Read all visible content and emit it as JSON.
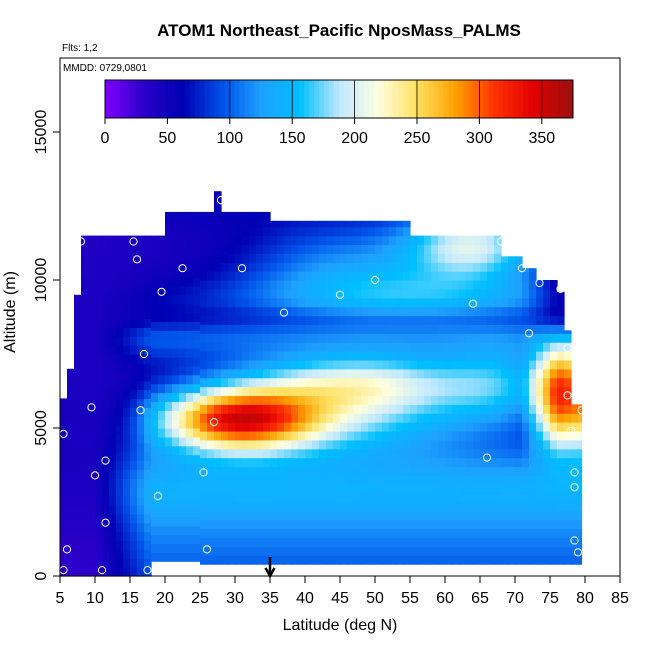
{
  "chart_data": {
    "type": "heatmap",
    "title": "ATOM1 Northeast_Pacific NposMass_PALMS",
    "annotations": [
      "Flts: 1,2",
      "MMDD: 0729,0801"
    ],
    "xlabel": "Latitude (deg N)",
    "ylabel": "Altitude (m)",
    "xlim": [
      5,
      85
    ],
    "ylim": [
      0,
      17500
    ],
    "xticks": [
      "5",
      "10",
      "15",
      "20",
      "25",
      "30",
      "35",
      "40",
      "45",
      "50",
      "55",
      "60",
      "65",
      "70",
      "75",
      "80",
      "85"
    ],
    "yticks": [
      "0",
      "5000",
      "10000",
      "15000"
    ],
    "colorbar": {
      "min": 0,
      "max": 375,
      "ticks": [
        "0",
        "50",
        "100",
        "150",
        "200",
        "250",
        "300",
        "350"
      ],
      "colors": [
        "#7f00ff",
        "#2a00c8",
        "#0000b4",
        "#0050e8",
        "#1ea0ff",
        "#00bfff",
        "#bfe8ff",
        "#ffffe0",
        "#ffe060",
        "#ffa000",
        "#ff3000",
        "#e00000",
        "#9a1010"
      ]
    },
    "marker": {
      "x": 35,
      "label": "↓"
    },
    "profile_points": [
      [
        5.5,
        200
      ],
      [
        6,
        900
      ],
      [
        5.5,
        4800
      ],
      [
        9.5,
        5700
      ],
      [
        10,
        3400
      ],
      [
        11,
        200
      ],
      [
        11.5,
        3900
      ],
      [
        11.5,
        1800
      ],
      [
        8,
        11300
      ],
      [
        15.5,
        11300
      ],
      [
        16,
        10700
      ],
      [
        16.5,
        5600
      ],
      [
        17,
        7500
      ],
      [
        17.5,
        200
      ],
      [
        19,
        2700
      ],
      [
        19.5,
        9600
      ],
      [
        22.5,
        10400
      ],
      [
        25.5,
        3500
      ],
      [
        26,
        900
      ],
      [
        27,
        5200
      ],
      [
        28,
        12700
      ],
      [
        31,
        10400
      ],
      [
        37,
        8900
      ],
      [
        45,
        9500
      ],
      [
        50,
        10000
      ],
      [
        64,
        9200
      ],
      [
        66,
        4000
      ],
      [
        68,
        11300
      ],
      [
        71,
        10400
      ],
      [
        72,
        8200
      ],
      [
        73.5,
        9900
      ],
      [
        76.5,
        9700
      ],
      [
        77.5,
        7700
      ],
      [
        77.5,
        6100
      ],
      [
        78,
        4900
      ],
      [
        78.5,
        3500
      ],
      [
        78.5,
        3000
      ],
      [
        78.5,
        1200
      ],
      [
        79,
        800
      ],
      [
        79.5,
        5600
      ]
    ]
  }
}
